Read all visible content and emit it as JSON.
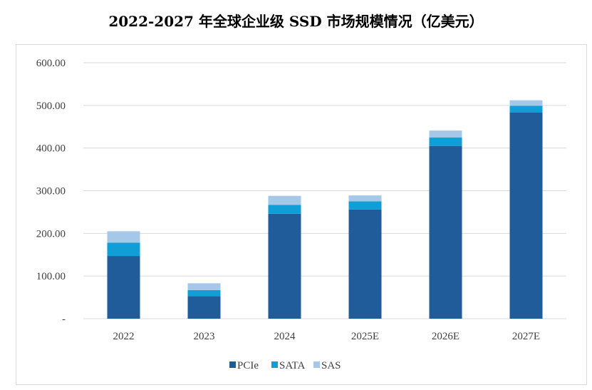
{
  "chart_data": {
    "type": "bar",
    "stacked": true,
    "title": "2022-2027 年全球企业级 SSD 市场规模情况（亿美元）",
    "categories": [
      "2022",
      "2023",
      "2024",
      "2025E",
      "2026E",
      "2027E"
    ],
    "series": [
      {
        "name": "PCIe",
        "color": "#1f5c99",
        "values": [
          147,
          53,
          246,
          256,
          405,
          483
        ]
      },
      {
        "name": "SATA",
        "color": "#0f9ed5",
        "values": [
          31,
          14,
          21,
          19,
          20,
          16
        ]
      },
      {
        "name": "SAS",
        "color": "#a5c8e8",
        "values": [
          27,
          16,
          21,
          14,
          16,
          13
        ]
      }
    ],
    "yticks": [
      "-",
      "100.00",
      "200.00",
      "300.00",
      "400.00",
      "500.00",
      "600.00"
    ],
    "ylim": [
      0,
      600
    ],
    "xlabel": "",
    "ylabel": "",
    "grid": true,
    "legend": "bottom"
  }
}
